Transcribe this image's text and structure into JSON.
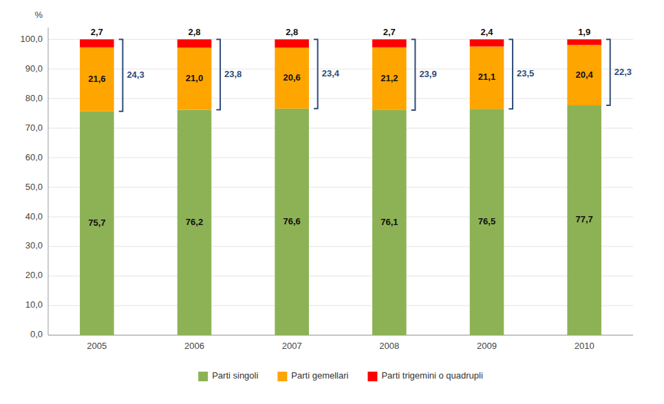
{
  "chart_data": {
    "type": "bar",
    "stacked": true,
    "categories": [
      "2005",
      "2006",
      "2007",
      "2008",
      "2009",
      "2010"
    ],
    "series": [
      {
        "name": "Parti singoli",
        "color": "#8DB255",
        "values": [
          75.7,
          76.2,
          76.6,
          76.1,
          76.5,
          77.7
        ],
        "value_labels": [
          "75,7",
          "76,2",
          "76,6",
          "76,1",
          "76,5",
          "77,7"
        ]
      },
      {
        "name": "Parti gemellari",
        "color": "#FFA500",
        "values": [
          21.6,
          21.0,
          20.6,
          21.2,
          21.1,
          20.4
        ],
        "value_labels": [
          "21,6",
          "21,0",
          "20,6",
          "21,2",
          "21,1",
          "20,4"
        ]
      },
      {
        "name": "Parti trigemini o quadrupli",
        "color": "#FF0000",
        "values": [
          2.7,
          2.8,
          2.8,
          2.7,
          2.4,
          1.9
        ],
        "value_labels": [
          "2,7",
          "2,8",
          "2,8",
          "2,7",
          "2,4",
          "1,9"
        ]
      }
    ],
    "brackets": {
      "color": "#2E4B7A",
      "values": [
        24.3,
        23.8,
        23.4,
        23.9,
        23.5,
        22.3
      ],
      "value_labels": [
        "24,3",
        "23,8",
        "23,4",
        "23,9",
        "23,5",
        "22,3"
      ]
    },
    "ylabel": "%",
    "ylim": [
      0,
      104
    ],
    "yticks": [
      {
        "value": 0,
        "label": "0,0"
      },
      {
        "value": 10,
        "label": "10,0"
      },
      {
        "value": 20,
        "label": "20,0"
      },
      {
        "value": 30,
        "label": "30,0"
      },
      {
        "value": 40,
        "label": "40,0"
      },
      {
        "value": 50,
        "label": "50,0"
      },
      {
        "value": 60,
        "label": "60,0"
      },
      {
        "value": 70,
        "label": "70,0"
      },
      {
        "value": 80,
        "label": "80,0"
      },
      {
        "value": 90,
        "label": "90,0"
      },
      {
        "value": 100,
        "label": "100,0"
      }
    ],
    "grid": true,
    "data_labels": true,
    "legend": "bottom"
  }
}
